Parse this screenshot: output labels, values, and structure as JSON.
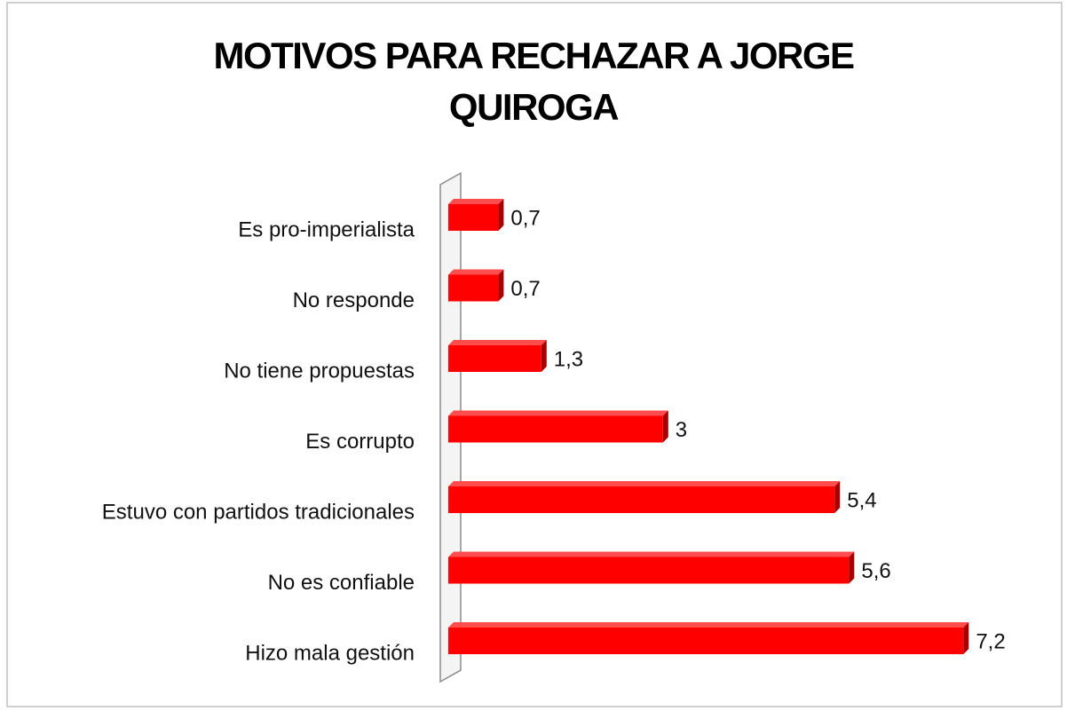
{
  "chart_data": {
    "type": "bar",
    "orientation": "horizontal",
    "title": "MOTIVOS PARA RECHAZAR A JORGE QUIROGA",
    "categories": [
      "Es pro-imperialista",
      "No responde",
      "No tiene propuestas",
      "Es corrupto",
      "Estuvo con partidos tradicionales",
      "No es confiable",
      "Hizo mala gestión"
    ],
    "values": [
      0.7,
      0.7,
      1.3,
      3,
      5.4,
      5.6,
      7.2
    ],
    "value_labels": [
      "0,7",
      "0,7",
      "1,3",
      "3",
      "5,4",
      "5,6",
      "7,2"
    ],
    "color": "#ff0000"
  }
}
